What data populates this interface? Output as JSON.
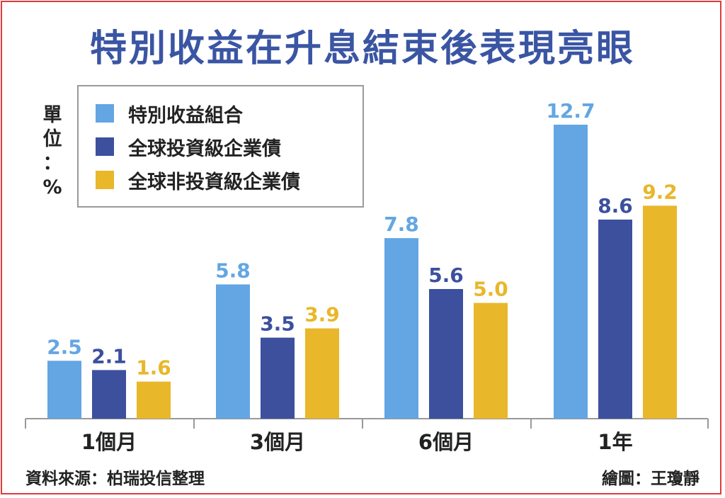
{
  "title": "特別收益在升息結束後表現亮眼",
  "unit": [
    "單",
    "位",
    "：",
    "%"
  ],
  "source": "資料來源：柏瑞投信整理",
  "credit": "繪圖：王瓊靜",
  "colors": {
    "series1": "#63a6e3",
    "series2": "#3c509e",
    "series3": "#e8b72a",
    "axis": "#999999"
  },
  "chart_data": {
    "type": "bar",
    "categories": [
      "1個月",
      "3個月",
      "6個月",
      "1年"
    ],
    "series": [
      {
        "name": "特別收益組合",
        "values": [
          2.5,
          5.8,
          7.8,
          12.7
        ]
      },
      {
        "name": "全球投資級企業債",
        "values": [
          2.1,
          3.5,
          5.6,
          8.6
        ]
      },
      {
        "name": "全球非投資級企業債",
        "values": [
          1.6,
          3.9,
          5.0,
          9.2
        ]
      }
    ],
    "value_labels": [
      [
        "2.5",
        "5.8",
        "7.8",
        "12.7"
      ],
      [
        "2.1",
        "3.5",
        "5.6",
        "8.6"
      ],
      [
        "1.6",
        "3.9",
        "5.0",
        "9.2"
      ]
    ],
    "ylabel": "單位：%",
    "ylim": [
      0,
      12.7
    ],
    "grid": false,
    "legend_position": "top-left"
  }
}
